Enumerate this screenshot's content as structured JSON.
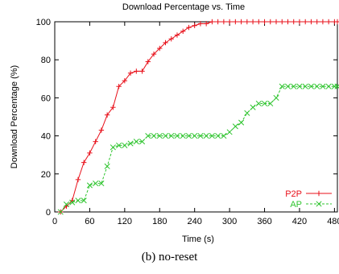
{
  "caption": "(b) no-reset",
  "colors": {
    "p2p": "#e8101a",
    "ap": "#2ec42e",
    "axis": "#000000"
  },
  "chart_data": {
    "type": "line",
    "title": "Download Percentage vs. Time",
    "xlabel": "Time (s)",
    "ylabel": "Download Percentage (%)",
    "xlim": [
      0,
      485
    ],
    "ylim": [
      0,
      100
    ],
    "xticks": [
      0,
      60,
      120,
      180,
      240,
      300,
      360,
      420,
      480
    ],
    "xtick_labels": [
      "0",
      "60",
      "120",
      "180",
      "240",
      "300",
      "360",
      "420",
      "480"
    ],
    "yticks": [
      0,
      20,
      40,
      60,
      80,
      100
    ],
    "ytick_labels": [
      "0",
      "20",
      "40",
      "60",
      "80",
      "100"
    ],
    "grid": false,
    "legend_position": "bottom-right",
    "series": [
      {
        "name": "P2P",
        "color": "#e8101a",
        "marker": "plus",
        "dash": "solid",
        "points": [
          [
            10,
            0
          ],
          [
            20,
            3
          ],
          [
            30,
            6
          ],
          [
            40,
            17
          ],
          [
            50,
            26
          ],
          [
            60,
            31
          ],
          [
            70,
            37
          ],
          [
            80,
            43
          ],
          [
            90,
            51
          ],
          [
            100,
            55
          ],
          [
            110,
            66
          ],
          [
            120,
            69
          ],
          [
            130,
            73
          ],
          [
            140,
            74
          ],
          [
            150,
            74
          ],
          [
            160,
            79
          ],
          [
            170,
            83
          ],
          [
            180,
            86
          ],
          [
            190,
            89
          ],
          [
            200,
            91
          ],
          [
            210,
            93
          ],
          [
            220,
            95
          ],
          [
            230,
            97
          ],
          [
            240,
            98
          ],
          [
            250,
            99
          ],
          [
            260,
            99
          ],
          [
            270,
            100
          ],
          [
            280,
            100
          ],
          [
            290,
            100
          ],
          [
            300,
            100
          ],
          [
            310,
            100
          ],
          [
            320,
            100
          ],
          [
            330,
            100
          ],
          [
            340,
            100
          ],
          [
            350,
            100
          ],
          [
            360,
            100
          ],
          [
            370,
            100
          ],
          [
            380,
            100
          ],
          [
            390,
            100
          ],
          [
            400,
            100
          ],
          [
            410,
            100
          ],
          [
            420,
            100
          ],
          [
            430,
            100
          ],
          [
            440,
            100
          ],
          [
            450,
            100
          ],
          [
            460,
            100
          ],
          [
            470,
            100
          ],
          [
            480,
            100
          ],
          [
            485,
            100
          ]
        ]
      },
      {
        "name": "AP",
        "color": "#2ec42e",
        "marker": "x",
        "dash": "dashed",
        "points": [
          [
            10,
            0
          ],
          [
            20,
            4
          ],
          [
            30,
            5
          ],
          [
            40,
            6
          ],
          [
            50,
            6
          ],
          [
            60,
            14
          ],
          [
            70,
            15
          ],
          [
            80,
            15
          ],
          [
            90,
            24
          ],
          [
            100,
            34
          ],
          [
            110,
            35
          ],
          [
            120,
            35
          ],
          [
            130,
            36
          ],
          [
            140,
            37
          ],
          [
            150,
            37
          ],
          [
            160,
            40
          ],
          [
            170,
            40
          ],
          [
            180,
            40
          ],
          [
            190,
            40
          ],
          [
            200,
            40
          ],
          [
            210,
            40
          ],
          [
            220,
            40
          ],
          [
            230,
            40
          ],
          [
            240,
            40
          ],
          [
            250,
            40
          ],
          [
            260,
            40
          ],
          [
            270,
            40
          ],
          [
            280,
            40
          ],
          [
            290,
            40
          ],
          [
            300,
            42
          ],
          [
            310,
            45
          ],
          [
            320,
            47
          ],
          [
            330,
            52
          ],
          [
            340,
            55
          ],
          [
            350,
            57
          ],
          [
            360,
            57
          ],
          [
            370,
            57
          ],
          [
            380,
            60
          ],
          [
            390,
            66
          ],
          [
            400,
            66
          ],
          [
            410,
            66
          ],
          [
            420,
            66
          ],
          [
            430,
            66
          ],
          [
            440,
            66
          ],
          [
            450,
            66
          ],
          [
            460,
            66
          ],
          [
            470,
            66
          ],
          [
            480,
            66
          ],
          [
            485,
            66
          ]
        ]
      }
    ]
  }
}
